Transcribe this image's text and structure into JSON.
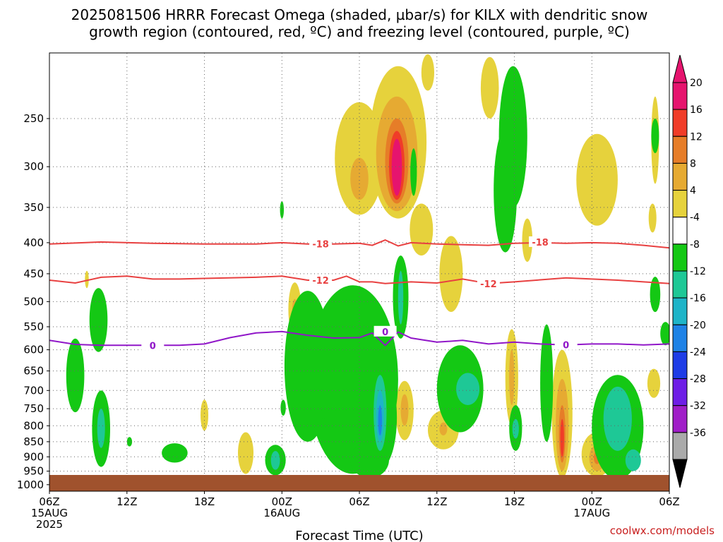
{
  "title": {
    "line1": "2025081506 HRRR Forecast Omega (shaded, µbar/s) for KILX with dendritic snow",
    "line2": "growth region (contoured, red, ºC) and freezing level (contoured, purple, ºC)"
  },
  "credit": "coolwx.com/models",
  "chart_data": {
    "type": "heatmap",
    "title": "2025081506 HRRR Forecast Omega (shaded, µbar/s) for KILX with dendritic snow growth region (contoured, red, ºC) and freezing level (contoured, purple, ºC)",
    "xlabel": "Forecast Time (UTC)",
    "ylabel": "",
    "x_unit": "hours since 2025-08-15 06Z",
    "xlim": [
      0,
      48
    ],
    "x_ticks": [
      {
        "h": 0,
        "line1": "06Z",
        "line2": "15AUG",
        "line3": "2025"
      },
      {
        "h": 6,
        "line1": "12Z",
        "line2": "",
        "line3": ""
      },
      {
        "h": 12,
        "line1": "18Z",
        "line2": "",
        "line3": ""
      },
      {
        "h": 18,
        "line1": "00Z",
        "line2": "16AUG",
        "line3": ""
      },
      {
        "h": 24,
        "line1": "06Z",
        "line2": "",
        "line3": ""
      },
      {
        "h": 30,
        "line1": "12Z",
        "line2": "",
        "line3": ""
      },
      {
        "h": 36,
        "line1": "18Z",
        "line2": "",
        "line3": ""
      },
      {
        "h": 42,
        "line1": "00Z",
        "line2": "17AUG",
        "line3": ""
      },
      {
        "h": 48,
        "line1": "06Z",
        "line2": "",
        "line3": ""
      }
    ],
    "y_axis": {
      "scale": "log",
      "reversed": true,
      "ylim": [
        1025,
        195
      ],
      "ticks": [
        250,
        300,
        350,
        400,
        450,
        500,
        550,
        600,
        650,
        700,
        750,
        800,
        850,
        900,
        950,
        1000
      ]
    },
    "grid": true,
    "colorbar": {
      "labels": [
        "20",
        "16",
        "12",
        "8",
        "4",
        "-4",
        "-8",
        "-12",
        "-16",
        "-20",
        "-24",
        "-28",
        "-32",
        "-36"
      ],
      "colors": [
        "#e6146e",
        "#f03c28",
        "#e67d28",
        "#e6aa32",
        "#e6d23c",
        "#ffffff",
        "#14c814",
        "#1ec896",
        "#1eb4c8",
        "#1e82e6",
        "#1e3ce6",
        "#6e1ee6",
        "#a01ec8",
        "#aaaaaa"
      ],
      "top_color": "#e6146e",
      "bottom_color": "#000000"
    },
    "contours": [
      {
        "name": "-18",
        "color": "#e84040",
        "label": "-18",
        "label_positions": [
          {
            "h": 21,
            "p": 402
          },
          {
            "h": 38,
            "p": 399
          }
        ],
        "points": [
          [
            0,
            402
          ],
          [
            4,
            399
          ],
          [
            8,
            401
          ],
          [
            12,
            402
          ],
          [
            16,
            402
          ],
          [
            18,
            400
          ],
          [
            20,
            402
          ],
          [
            22,
            402
          ],
          [
            24,
            401
          ],
          [
            25,
            404
          ],
          [
            26,
            396
          ],
          [
            27,
            405
          ],
          [
            28,
            400
          ],
          [
            30,
            402
          ],
          [
            32,
            403
          ],
          [
            34,
            404
          ],
          [
            36,
            401
          ],
          [
            38,
            400
          ],
          [
            40,
            401
          ],
          [
            42,
            400
          ],
          [
            44,
            401
          ],
          [
            46,
            404
          ],
          [
            48,
            408
          ]
        ]
      },
      {
        "name": "-12",
        "color": "#e84040",
        "label": "-12",
        "label_positions": [
          {
            "h": 21,
            "p": 461
          },
          {
            "h": 34,
            "p": 467
          }
        ],
        "points": [
          [
            0,
            461
          ],
          [
            2,
            466
          ],
          [
            4,
            456
          ],
          [
            6,
            454
          ],
          [
            8,
            459
          ],
          [
            10,
            459
          ],
          [
            12,
            458
          ],
          [
            16,
            456
          ],
          [
            18,
            454
          ],
          [
            20,
            461
          ],
          [
            22,
            461
          ],
          [
            23,
            454
          ],
          [
            24,
            464
          ],
          [
            25,
            464
          ],
          [
            26,
            467
          ],
          [
            28,
            464
          ],
          [
            30,
            466
          ],
          [
            32,
            459
          ],
          [
            34,
            467
          ],
          [
            36,
            464
          ],
          [
            40,
            457
          ],
          [
            42,
            459
          ],
          [
            44,
            461
          ],
          [
            46,
            464
          ],
          [
            48,
            467
          ]
        ]
      },
      {
        "name": "0",
        "color": "#9016c8",
        "label": "0",
        "label_positions": [
          {
            "h": 8,
            "p": 590
          },
          {
            "h": 26,
            "p": 560
          },
          {
            "h": 40,
            "p": 589
          }
        ],
        "points": [
          [
            0,
            579
          ],
          [
            2,
            588
          ],
          [
            4,
            590
          ],
          [
            6,
            590
          ],
          [
            8,
            590
          ],
          [
            10,
            590
          ],
          [
            12,
            587
          ],
          [
            14,
            573
          ],
          [
            16,
            563
          ],
          [
            18,
            560
          ],
          [
            20,
            568
          ],
          [
            22,
            574
          ],
          [
            24,
            573
          ],
          [
            25,
            563
          ],
          [
            26,
            590
          ],
          [
            27,
            561
          ],
          [
            28,
            574
          ],
          [
            30,
            583
          ],
          [
            32,
            579
          ],
          [
            34,
            587
          ],
          [
            36,
            583
          ],
          [
            38,
            587
          ],
          [
            40,
            589
          ],
          [
            42,
            587
          ],
          [
            44,
            587
          ],
          [
            46,
            589
          ],
          [
            48,
            587
          ]
        ]
      }
    ],
    "omega_regions": [
      {
        "level": "4",
        "shape": "ellipse",
        "h": 24,
        "p": 300,
        "dh": 1.9,
        "dp_top": 235,
        "dp_bot": 360
      },
      {
        "level": "8",
        "shape": "ellipse",
        "h": 24,
        "p": 315,
        "dh": 0.7,
        "dp_top": 290,
        "dp_bot": 340
      },
      {
        "level": "4",
        "shape": "ellipse",
        "h": 27,
        "p": 290,
        "dh": 2.2,
        "dp_top": 205,
        "dp_bot": 365
      },
      {
        "level": "8",
        "shape": "ellipse",
        "h": 26.9,
        "p": 295,
        "dh": 1.6,
        "dp_top": 230,
        "dp_bot": 355
      },
      {
        "level": "12",
        "shape": "ellipse",
        "h": 26.9,
        "p": 300,
        "dh": 0.9,
        "dp_top": 250,
        "dp_bot": 345
      },
      {
        "level": "16",
        "shape": "ellipse",
        "h": 26.9,
        "p": 300,
        "dh": 0.6,
        "dp_top": 262,
        "dp_bot": 340
      },
      {
        "level": "20",
        "shape": "ellipse",
        "h": 26.9,
        "p": 300,
        "dh": 0.4,
        "dp_top": 270,
        "dp_bot": 335
      },
      {
        "level": "4",
        "shape": "ellipse",
        "h": 29.3,
        "p": 210,
        "dh": 0.5,
        "dp_top": 196,
        "dp_bot": 225
      },
      {
        "level": "4",
        "shape": "ellipse",
        "h": 28.8,
        "p": 385,
        "dh": 0.9,
        "dp_top": 345,
        "dp_bot": 420
      },
      {
        "level": "4",
        "shape": "ellipse",
        "h": 31.1,
        "p": 440,
        "dh": 0.9,
        "dp_top": 390,
        "dp_bot": 520
      },
      {
        "level": "4",
        "shape": "ellipse",
        "h": 34.1,
        "p": 215,
        "dh": 0.7,
        "dp_top": 198,
        "dp_bot": 250
      },
      {
        "level": "4",
        "shape": "ellipse",
        "h": 42.4,
        "p": 300,
        "dh": 1.6,
        "dp_top": 265,
        "dp_bot": 375
      },
      {
        "level": "4",
        "shape": "ellipse",
        "h": 46.9,
        "p": 245,
        "dh": 0.3,
        "dp_top": 230,
        "dp_bot": 320
      },
      {
        "level": "4",
        "shape": "ellipse",
        "h": 46.7,
        "p": 365,
        "dh": 0.3,
        "dp_top": 345,
        "dp_bot": 385
      },
      {
        "level": "4",
        "shape": "ellipse",
        "h": 37,
        "p": 385,
        "dh": 0.4,
        "dp_top": 365,
        "dp_bot": 430
      },
      {
        "level": "4",
        "shape": "ellipse",
        "h": 19,
        "p": 510,
        "dh": 0.5,
        "dp_top": 465,
        "dp_bot": 570
      },
      {
        "level": "8",
        "shape": "ellipse",
        "h": 19,
        "p": 515,
        "dh": 0.2,
        "dp_top": 495,
        "dp_bot": 540
      },
      {
        "level": "4",
        "shape": "ellipse",
        "h": 25.8,
        "p": 540,
        "dh": 0.2,
        "dp_top": 515,
        "dp_bot": 575
      },
      {
        "level": "4",
        "shape": "ellipse",
        "h": 30.5,
        "p": 810,
        "dh": 1.2,
        "dp_top": 755,
        "dp_bot": 875
      },
      {
        "level": "8",
        "shape": "ellipse",
        "h": 30.5,
        "p": 810,
        "dh": 0.3,
        "dp_top": 790,
        "dp_bot": 830
      },
      {
        "level": "4",
        "shape": "ellipse",
        "h": 27.5,
        "p": 750,
        "dh": 0.7,
        "dp_top": 675,
        "dp_bot": 845
      },
      {
        "level": "8",
        "shape": "ellipse",
        "h": 27.5,
        "p": 750,
        "dh": 0.3,
        "dp_top": 710,
        "dp_bot": 800
      },
      {
        "level": "4",
        "shape": "ellipse",
        "h": 24.5,
        "p": 790,
        "dh": 0.5,
        "dp_top": 715,
        "dp_bot": 890
      },
      {
        "level": "8",
        "shape": "ellipse",
        "h": 24.5,
        "p": 790,
        "dh": 0.2,
        "dp_top": 755,
        "dp_bot": 835
      },
      {
        "level": "4",
        "shape": "ellipse",
        "h": 12,
        "p": 765,
        "dh": 0.3,
        "dp_top": 725,
        "dp_bot": 815
      },
      {
        "level": "4",
        "shape": "ellipse",
        "h": 15.2,
        "p": 890,
        "dh": 0.6,
        "dp_top": 820,
        "dp_bot": 960
      },
      {
        "level": "4",
        "shape": "ellipse",
        "h": 2.9,
        "p": 460,
        "dh": 0.15,
        "dp_top": 445,
        "dp_bot": 475
      },
      {
        "level": "4",
        "shape": "ellipse",
        "h": 35.8,
        "p": 660,
        "dh": 0.5,
        "dp_top": 555,
        "dp_bot": 800
      },
      {
        "level": "8",
        "shape": "ellipse",
        "h": 35.8,
        "p": 660,
        "dh": 0.2,
        "dp_top": 600,
        "dp_bot": 740
      },
      {
        "level": "4",
        "shape": "ellipse",
        "h": 39.7,
        "p": 780,
        "dh": 0.8,
        "dp_top": 600,
        "dp_bot": 975
      },
      {
        "level": "8",
        "shape": "ellipse",
        "h": 39.7,
        "p": 800,
        "dh": 0.5,
        "dp_top": 670,
        "dp_bot": 950
      },
      {
        "level": "12",
        "shape": "ellipse",
        "h": 39.7,
        "p": 820,
        "dh": 0.25,
        "dp_top": 740,
        "dp_bot": 920
      },
      {
        "level": "16",
        "shape": "ellipse",
        "h": 39.7,
        "p": 830,
        "dh": 0.15,
        "dp_top": 780,
        "dp_bot": 900
      },
      {
        "level": "4",
        "shape": "ellipse",
        "h": 42.4,
        "p": 900,
        "dh": 1.2,
        "dp_top": 820,
        "dp_bot": 970
      },
      {
        "level": "8",
        "shape": "ellipse",
        "h": 42.4,
        "p": 900,
        "dh": 0.6,
        "dp_top": 860,
        "dp_bot": 950
      },
      {
        "level": "12",
        "shape": "ellipse",
        "h": 42.4,
        "p": 900,
        "dh": 0.25,
        "dp_top": 880,
        "dp_bot": 925
      },
      {
        "level": "4",
        "shape": "ellipse",
        "h": 46.8,
        "p": 680,
        "dh": 0.5,
        "dp_top": 645,
        "dp_bot": 720
      },
      {
        "level": "-4",
        "shape": "ellipse",
        "h": 35.9,
        "p": 230,
        "dh": 1.1,
        "dp_top": 205,
        "dp_bot": 350
      },
      {
        "level": "-4",
        "shape": "ellipse",
        "h": 35.3,
        "p": 335,
        "dh": 0.9,
        "dp_top": 260,
        "dp_bot": 415
      },
      {
        "level": "-4",
        "shape": "ellipse",
        "h": 28.2,
        "p": 305,
        "dh": 0.25,
        "dp_top": 280,
        "dp_bot": 335
      },
      {
        "level": "-4",
        "shape": "ellipse",
        "h": 18,
        "p": 352,
        "dh": 0.15,
        "dp_top": 342,
        "dp_bot": 365
      },
      {
        "level": "-4",
        "shape": "ellipse",
        "h": 46.9,
        "p": 265,
        "dh": 0.3,
        "dp_top": 250,
        "dp_bot": 285
      },
      {
        "level": "-4",
        "shape": "ellipse",
        "h": 47.7,
        "p": 565,
        "dh": 0.4,
        "dp_top": 540,
        "dp_bot": 590
      },
      {
        "level": "-4",
        "shape": "ellipse",
        "h": 46.9,
        "p": 485,
        "dh": 0.4,
        "dp_top": 455,
        "dp_bot": 520
      },
      {
        "level": "-4",
        "shape": "ellipse",
        "h": 27.2,
        "p": 480,
        "dh": 0.6,
        "dp_top": 420,
        "dp_bot": 575
      },
      {
        "level": "-8",
        "shape": "ellipse",
        "h": 27.2,
        "p": 485,
        "dh": 0.2,
        "dp_top": 445,
        "dp_bot": 545
      },
      {
        "level": "-4",
        "shape": "ellipse",
        "h": 3.8,
        "p": 530,
        "dh": 0.7,
        "dp_top": 475,
        "dp_bot": 605
      },
      {
        "level": "-4",
        "shape": "ellipse",
        "h": 2,
        "p": 660,
        "dh": 0.7,
        "dp_top": 575,
        "dp_bot": 760
      },
      {
        "level": "-4",
        "shape": "ellipse",
        "h": 4,
        "p": 800,
        "dh": 0.7,
        "dp_top": 700,
        "dp_bot": 935
      },
      {
        "level": "-8",
        "shape": "ellipse",
        "h": 4,
        "p": 800,
        "dh": 0.3,
        "dp_top": 750,
        "dp_bot": 870
      },
      {
        "level": "-4",
        "shape": "ellipse",
        "h": 6.2,
        "p": 850,
        "dh": 0.2,
        "dp_top": 835,
        "dp_bot": 865
      },
      {
        "level": "-4",
        "shape": "ellipse",
        "h": 9.7,
        "p": 885,
        "dh": 1.0,
        "dp_top": 855,
        "dp_bot": 920
      },
      {
        "level": "-4",
        "shape": "ellipse",
        "h": 17.5,
        "p": 910,
        "dh": 0.8,
        "dp_top": 860,
        "dp_bot": 965
      },
      {
        "level": "-8",
        "shape": "ellipse",
        "h": 17.5,
        "p": 910,
        "dh": 0.35,
        "dp_top": 880,
        "dp_bot": 945
      },
      {
        "level": "-4",
        "shape": "ellipse",
        "h": 18.1,
        "p": 745,
        "dh": 0.2,
        "dp_top": 725,
        "dp_bot": 770
      },
      {
        "level": "-4",
        "shape": "ellipse",
        "h": 23.5,
        "p": 630,
        "dh": 3.5,
        "dp_top": 470,
        "dp_bot": 960
      },
      {
        "level": "-4",
        "shape": "ellipse",
        "h": 20,
        "p": 700,
        "dh": 1.8,
        "dp_top": 480,
        "dp_bot": 850
      },
      {
        "level": "-4",
        "shape": "ellipse",
        "h": 21.5,
        "p": 640,
        "dh": 1.8,
        "dp_top": 560,
        "dp_bot": 780
      },
      {
        "level": "-4",
        "shape": "ellipse",
        "h": 24.8,
        "p": 915,
        "dh": 1.5,
        "dp_top": 850,
        "dp_bot": 975
      },
      {
        "level": "-4",
        "shape": "ellipse",
        "h": 25.6,
        "p": 760,
        "dh": 1.3,
        "dp_top": 640,
        "dp_bot": 940
      },
      {
        "level": "-8",
        "shape": "ellipse",
        "h": 25.6,
        "p": 760,
        "dh": 0.5,
        "dp_top": 660,
        "dp_bot": 880
      },
      {
        "level": "-12",
        "shape": "ellipse",
        "h": 25.6,
        "p": 770,
        "dh": 0.3,
        "dp_top": 700,
        "dp_bot": 850
      },
      {
        "level": "-16",
        "shape": "ellipse",
        "h": 25.6,
        "p": 780,
        "dh": 0.15,
        "dp_top": 740,
        "dp_bot": 830
      },
      {
        "level": "-4",
        "shape": "ellipse",
        "h": 31.8,
        "p": 680,
        "dh": 1.8,
        "dp_top": 590,
        "dp_bot": 820
      },
      {
        "level": "-8",
        "shape": "ellipse",
        "h": 32.4,
        "p": 690,
        "dh": 0.9,
        "dp_top": 655,
        "dp_bot": 740
      },
      {
        "level": "-4",
        "shape": "ellipse",
        "h": 36.1,
        "p": 800,
        "dh": 0.5,
        "dp_top": 740,
        "dp_bot": 880
      },
      {
        "level": "-8",
        "shape": "ellipse",
        "h": 36.1,
        "p": 810,
        "dh": 0.25,
        "dp_top": 780,
        "dp_bot": 840
      },
      {
        "level": "-4",
        "shape": "ellipse",
        "h": 38.5,
        "p": 640,
        "dh": 0.5,
        "dp_top": 545,
        "dp_bot": 850
      },
      {
        "level": "-4",
        "shape": "ellipse",
        "h": 44,
        "p": 800,
        "dh": 2.0,
        "dp_top": 660,
        "dp_bot": 980
      },
      {
        "level": "-8",
        "shape": "ellipse",
        "h": 44,
        "p": 770,
        "dh": 1.1,
        "dp_top": 690,
        "dp_bot": 880
      },
      {
        "level": "-8",
        "shape": "ellipse",
        "h": 45.2,
        "p": 910,
        "dh": 0.6,
        "dp_top": 875,
        "dp_bot": 950
      }
    ]
  }
}
